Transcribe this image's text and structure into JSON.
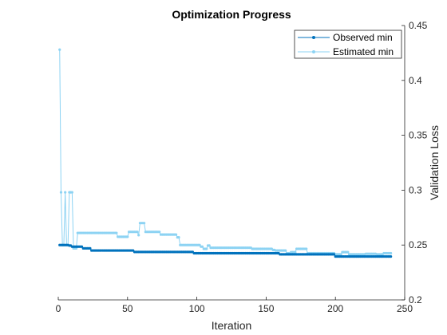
{
  "chart_data": {
    "type": "line",
    "title": "Optimization Progress",
    "xlabel": "Iteration",
    "ylabel": "Validation Loss",
    "xlim": [
      0,
      250
    ],
    "ylim": [
      0.2,
      0.45
    ],
    "xticks": [
      0,
      50,
      100,
      150,
      200,
      250
    ],
    "yticks": [
      0.2,
      0.25,
      0.3,
      0.35,
      0.4,
      0.45
    ],
    "x_tick_labels": [
      "0",
      "50",
      "100",
      "150",
      "200",
      "250"
    ],
    "y_tick_labels": [
      "0.2",
      "0.25",
      "0.3",
      "0.35",
      "0.4",
      "0.45"
    ],
    "y_axis_side": "right",
    "grid": false,
    "legend_position": "top-right",
    "n_points": 240,
    "series": [
      {
        "name": "Observed min",
        "color": "#0072BD",
        "marker": "dot",
        "steps": [
          [
            1,
            0.25
          ],
          [
            8,
            0.2495
          ],
          [
            10,
            0.2485
          ],
          [
            18,
            0.247
          ],
          [
            24,
            0.245
          ],
          [
            55,
            0.2437
          ],
          [
            98,
            0.2425
          ],
          [
            160,
            0.2415
          ],
          [
            200,
            0.2395
          ]
        ]
      },
      {
        "name": "Estimated min",
        "color": "#8DD3F3",
        "marker": "dot",
        "steps": [
          [
            1,
            0.428
          ],
          [
            2,
            0.298
          ],
          [
            3,
            0.25
          ],
          [
            5,
            0.298
          ],
          [
            6,
            0.25
          ],
          [
            8,
            0.298
          ],
          [
            11,
            0.247
          ],
          [
            14,
            0.261
          ],
          [
            43,
            0.2575
          ],
          [
            51,
            0.262
          ],
          [
            58,
            0.259
          ],
          [
            59,
            0.27
          ],
          [
            63,
            0.262
          ],
          [
            74,
            0.2595
          ],
          [
            86,
            0.257
          ],
          [
            88,
            0.25
          ],
          [
            103,
            0.2485
          ],
          [
            105,
            0.2465
          ],
          [
            108,
            0.2495
          ],
          [
            110,
            0.2475
          ],
          [
            140,
            0.2465
          ],
          [
            155,
            0.2455
          ],
          [
            157,
            0.245
          ],
          [
            165,
            0.2425
          ],
          [
            168,
            0.2435
          ],
          [
            172,
            0.2465
          ],
          [
            180,
            0.2425
          ],
          [
            200,
            0.2415
          ],
          [
            205,
            0.2435
          ],
          [
            210,
            0.2415
          ],
          [
            222,
            0.242
          ],
          [
            230,
            0.2415
          ],
          [
            235,
            0.2425
          ]
        ]
      }
    ]
  }
}
